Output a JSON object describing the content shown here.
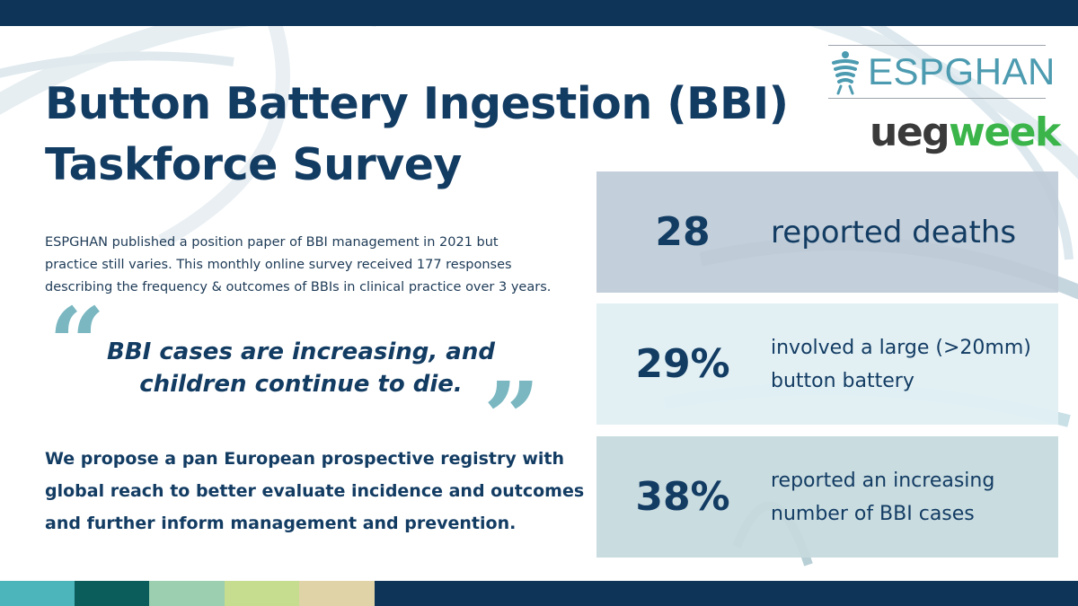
{
  "title": {
    "line1": "Button Battery Ingestion (BBI)",
    "line2": "Taskforce Survey"
  },
  "intro": {
    "line1": "ESPGHAN published a position paper of BBI management in 2021 but",
    "line2": "practice still varies. This monthly online survey received 177 responses",
    "line3": "describing the frequency & outcomes of BBIs in clinical practice over 3 years."
  },
  "quote": {
    "open_mark": "“",
    "close_mark": "”",
    "line1": "BBI cases are increasing, and",
    "line2": "children continue to die."
  },
  "proposal": {
    "line1": "We propose a pan European prospective registry with",
    "line2": "global reach to better evaluate incidence and outcomes",
    "line3": "and further inform management and prevention."
  },
  "logos": {
    "espghan": "ESPGHAN",
    "ueg": "ueg",
    "week": "week"
  },
  "stats": [
    {
      "value": "28",
      "label_lines": [
        "reported deaths"
      ]
    },
    {
      "value": "29%",
      "label_lines": [
        "involved a large (>20mm)",
        "button battery"
      ]
    },
    {
      "value": "38%",
      "label_lines": [
        "reported an increasing",
        "number of BBI cases"
      ]
    }
  ],
  "colors": {
    "navy": "#133c63",
    "top_bar": "#0e3558",
    "quote_mark": "#7ab7c1",
    "espghan_blue": "#4d9bb0",
    "ueg_grey": "#3a3a3a",
    "week_green": "#3bb54a",
    "footer_stripes": [
      "#4cb4bb",
      "#0a5d5a",
      "#9bcfb0",
      "#c6dc8e",
      "#e0d3a8",
      "#0e3558"
    ]
  },
  "icons": {
    "espghan_logo": "espghan-figure-icon"
  }
}
